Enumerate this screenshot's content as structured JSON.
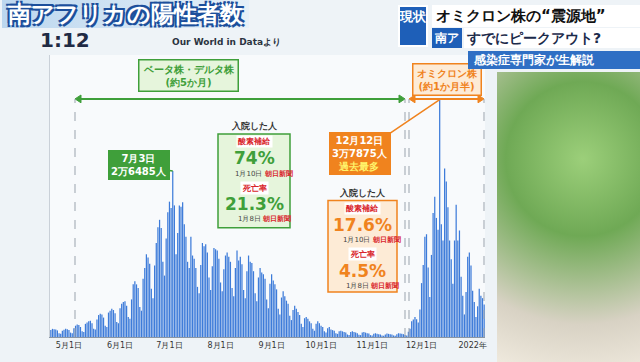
{
  "screen": {
    "time": "1:12",
    "badge": "現状",
    "headline": "オミクロン株の“震源地”",
    "badge2": "南ア",
    "subheadline": "すでにピークアウト?",
    "banner": "感染症専門家が生解説"
  },
  "chart_data": {
    "type": "bar",
    "title": "南アフリカの陽性者数",
    "source": "Our World in Dataより",
    "categories": [
      null,
      null,
      null,
      null,
      null,
      null,
      null,
      null,
      null,
      null,
      null,
      "5月1日",
      null,
      null,
      null,
      null,
      null,
      null,
      null,
      null,
      null,
      null,
      null,
      null,
      null,
      null,
      null,
      null,
      null,
      null,
      null,
      null,
      null,
      null,
      null,
      null,
      null,
      null,
      null,
      null,
      null,
      null,
      "6月1日",
      null,
      null,
      null,
      null,
      null,
      null,
      null,
      null,
      null,
      null,
      null,
      null,
      null,
      null,
      null,
      null,
      null,
      null,
      null,
      null,
      null,
      null,
      null,
      null,
      null,
      null,
      null,
      null,
      null,
      "7月1日",
      null,
      null,
      null,
      null,
      null,
      null,
      null,
      null,
      null,
      null,
      null,
      null,
      null,
      null,
      null,
      null,
      null,
      null,
      null,
      null,
      null,
      null,
      null,
      null,
      null,
      null,
      null,
      null,
      null,
      null,
      "8月1日",
      null,
      null,
      null,
      null,
      null,
      null,
      null,
      null,
      null,
      null,
      null,
      null,
      null,
      null,
      null,
      null,
      null,
      null,
      null,
      null,
      null,
      null,
      null,
      null,
      null,
      null,
      null,
      null,
      null,
      null,
      "9月1日",
      null,
      null,
      null,
      null,
      null,
      null,
      null,
      null,
      null,
      null,
      null,
      null,
      null,
      null,
      null,
      null,
      null,
      null,
      null,
      null,
      null,
      null,
      null,
      null,
      null,
      null,
      null,
      null,
      null,
      "10月1日",
      null,
      null,
      null,
      null,
      null,
      null,
      null,
      null,
      null,
      null,
      null,
      null,
      null,
      null,
      null,
      null,
      null,
      null,
      null,
      null,
      null,
      null,
      null,
      null,
      null,
      null,
      null,
      null,
      null,
      null,
      "11月1日",
      null,
      null,
      null,
      null,
      null,
      null,
      null,
      null,
      null,
      null,
      null,
      null,
      null,
      null,
      null,
      null,
      null,
      null,
      null,
      null,
      null,
      null,
      null,
      null,
      null,
      null,
      null,
      null,
      null,
      "12月1日",
      null,
      null,
      null,
      null,
      null,
      null,
      null,
      null,
      null,
      null,
      null,
      null,
      null,
      null,
      null,
      null,
      null,
      null,
      null,
      null,
      null,
      null,
      null,
      null,
      null,
      null,
      null,
      null,
      null,
      null,
      "2022年",
      null,
      null,
      null,
      null,
      null,
      null,
      null
    ],
    "values": [
      1100,
      1300,
      1250,
      1200,
      1050,
      600,
      500,
      1000,
      1150,
      1300,
      1250,
      1100,
      700,
      600,
      1400,
      1800,
      2000,
      1900,
      1600,
      900,
      800,
      2100,
      2300,
      2500,
      2600,
      2200,
      1300,
      1200,
      2800,
      3500,
      3700,
      3600,
      3100,
      1800,
      1600,
      3900,
      4200,
      4500,
      4300,
      3800,
      2400,
      2200,
      4600,
      5300,
      5600,
      5700,
      5000,
      3200,
      2900,
      6000,
      8400,
      8900,
      8400,
      7800,
      4800,
      4200,
      9300,
      11000,
      13200,
      12700,
      11700,
      7700,
      6200,
      11400,
      15000,
      17500,
      18700,
      17400,
      12000,
      9800,
      15700,
      19900,
      21600,
      20600,
      26485,
      21000,
      13200,
      16600,
      21000,
      20800,
      21500,
      18000,
      16000,
      12000,
      11000,
      16000,
      13000,
      12500,
      11000,
      8000,
      7000,
      11500,
      15000,
      14500,
      14800,
      13500,
      9500,
      7500,
      11300,
      14200,
      14000,
      13800,
      12500,
      8700,
      7300,
      10800,
      13000,
      13500,
      12800,
      12000,
      7800,
      6500,
      11000,
      13800,
      12200,
      12800,
      11600,
      7500,
      6200,
      10500,
      13000,
      12000,
      11800,
      10500,
      7000,
      5700,
      9500,
      11000,
      10300,
      10000,
      9300,
      6000,
      4600,
      8500,
      10000,
      9000,
      8400,
      7600,
      4500,
      3600,
      6300,
      7300,
      6500,
      5800,
      5300,
      3400,
      2700,
      4300,
      5000,
      4500,
      4000,
      3500,
      2100,
      1600,
      3000,
      3200,
      2900,
      2500,
      2200,
      1300,
      1000,
      2100,
      2500,
      2200,
      1800,
      1600,
      900,
      700,
      1400,
      1600,
      1200,
      1100,
      1000,
      600,
      500,
      900,
      1000,
      900,
      800,
      700,
      400,
      300,
      800,
      900,
      800,
      700,
      600,
      350,
      300,
      700,
      800,
      700,
      600,
      550,
      300,
      250,
      500,
      600,
      500,
      450,
      400,
      250,
      200,
      400,
      550,
      500,
      450,
      400,
      250,
      200,
      450,
      600,
      550,
      500,
      450,
      300,
      250,
      850,
      1300,
      2500,
      2800,
      3200,
      2850,
      2300,
      4400,
      8600,
      11500,
      16000,
      16400,
      11100,
      6400,
      13100,
      19800,
      22400,
      19000,
      17100,
      37875,
      18000,
      15400,
      26900,
      24800,
      20700,
      15400,
      12400,
      8500,
      15400,
      21100,
      15400,
      17000,
      9600,
      6600,
      3600,
      7200,
      12800,
      13500,
      11400,
      7400,
      5600,
      3200,
      4900,
      7700,
      6600,
      6200,
      5200
    ],
    "color": "#3d7bd9",
    "ylim": [
      0,
      45000
    ],
    "tick_labels": "x",
    "grid": false,
    "peaks": [
      {
        "date": "7月3日",
        "label": "2万6485人",
        "value": 26485,
        "color": "#3f9f3a"
      },
      {
        "date": "12月12日",
        "label": "3万7875人",
        "value": 37875,
        "note": "過去最多",
        "color": "#f0831e"
      }
    ],
    "periods": [
      {
        "name": "ベータ株・デルタ株",
        "duration": "(約5か月)",
        "color": "#3f9f3a",
        "hospital": {
          "heading": "入院した人",
          "items": [
            {
              "label": "酸素補給",
              "value": "74%",
              "date": "1月10日",
              "source": "朝日新聞"
            },
            {
              "label": "死亡率",
              "value": "21.3%",
              "date": "1月8日",
              "source": "朝日新聞"
            }
          ]
        }
      },
      {
        "name": "オミクロン株",
        "duration": "(約1か月半)",
        "color": "#f0831e",
        "hospital": {
          "heading": "入院した人",
          "items": [
            {
              "label": "酸素補給",
              "value": "17.6%",
              "date": "1月10日",
              "source": "朝日新聞"
            },
            {
              "label": "死亡率",
              "value": "4.5%",
              "date": "1月8日",
              "source": "朝日新聞"
            }
          ]
        }
      }
    ]
  }
}
